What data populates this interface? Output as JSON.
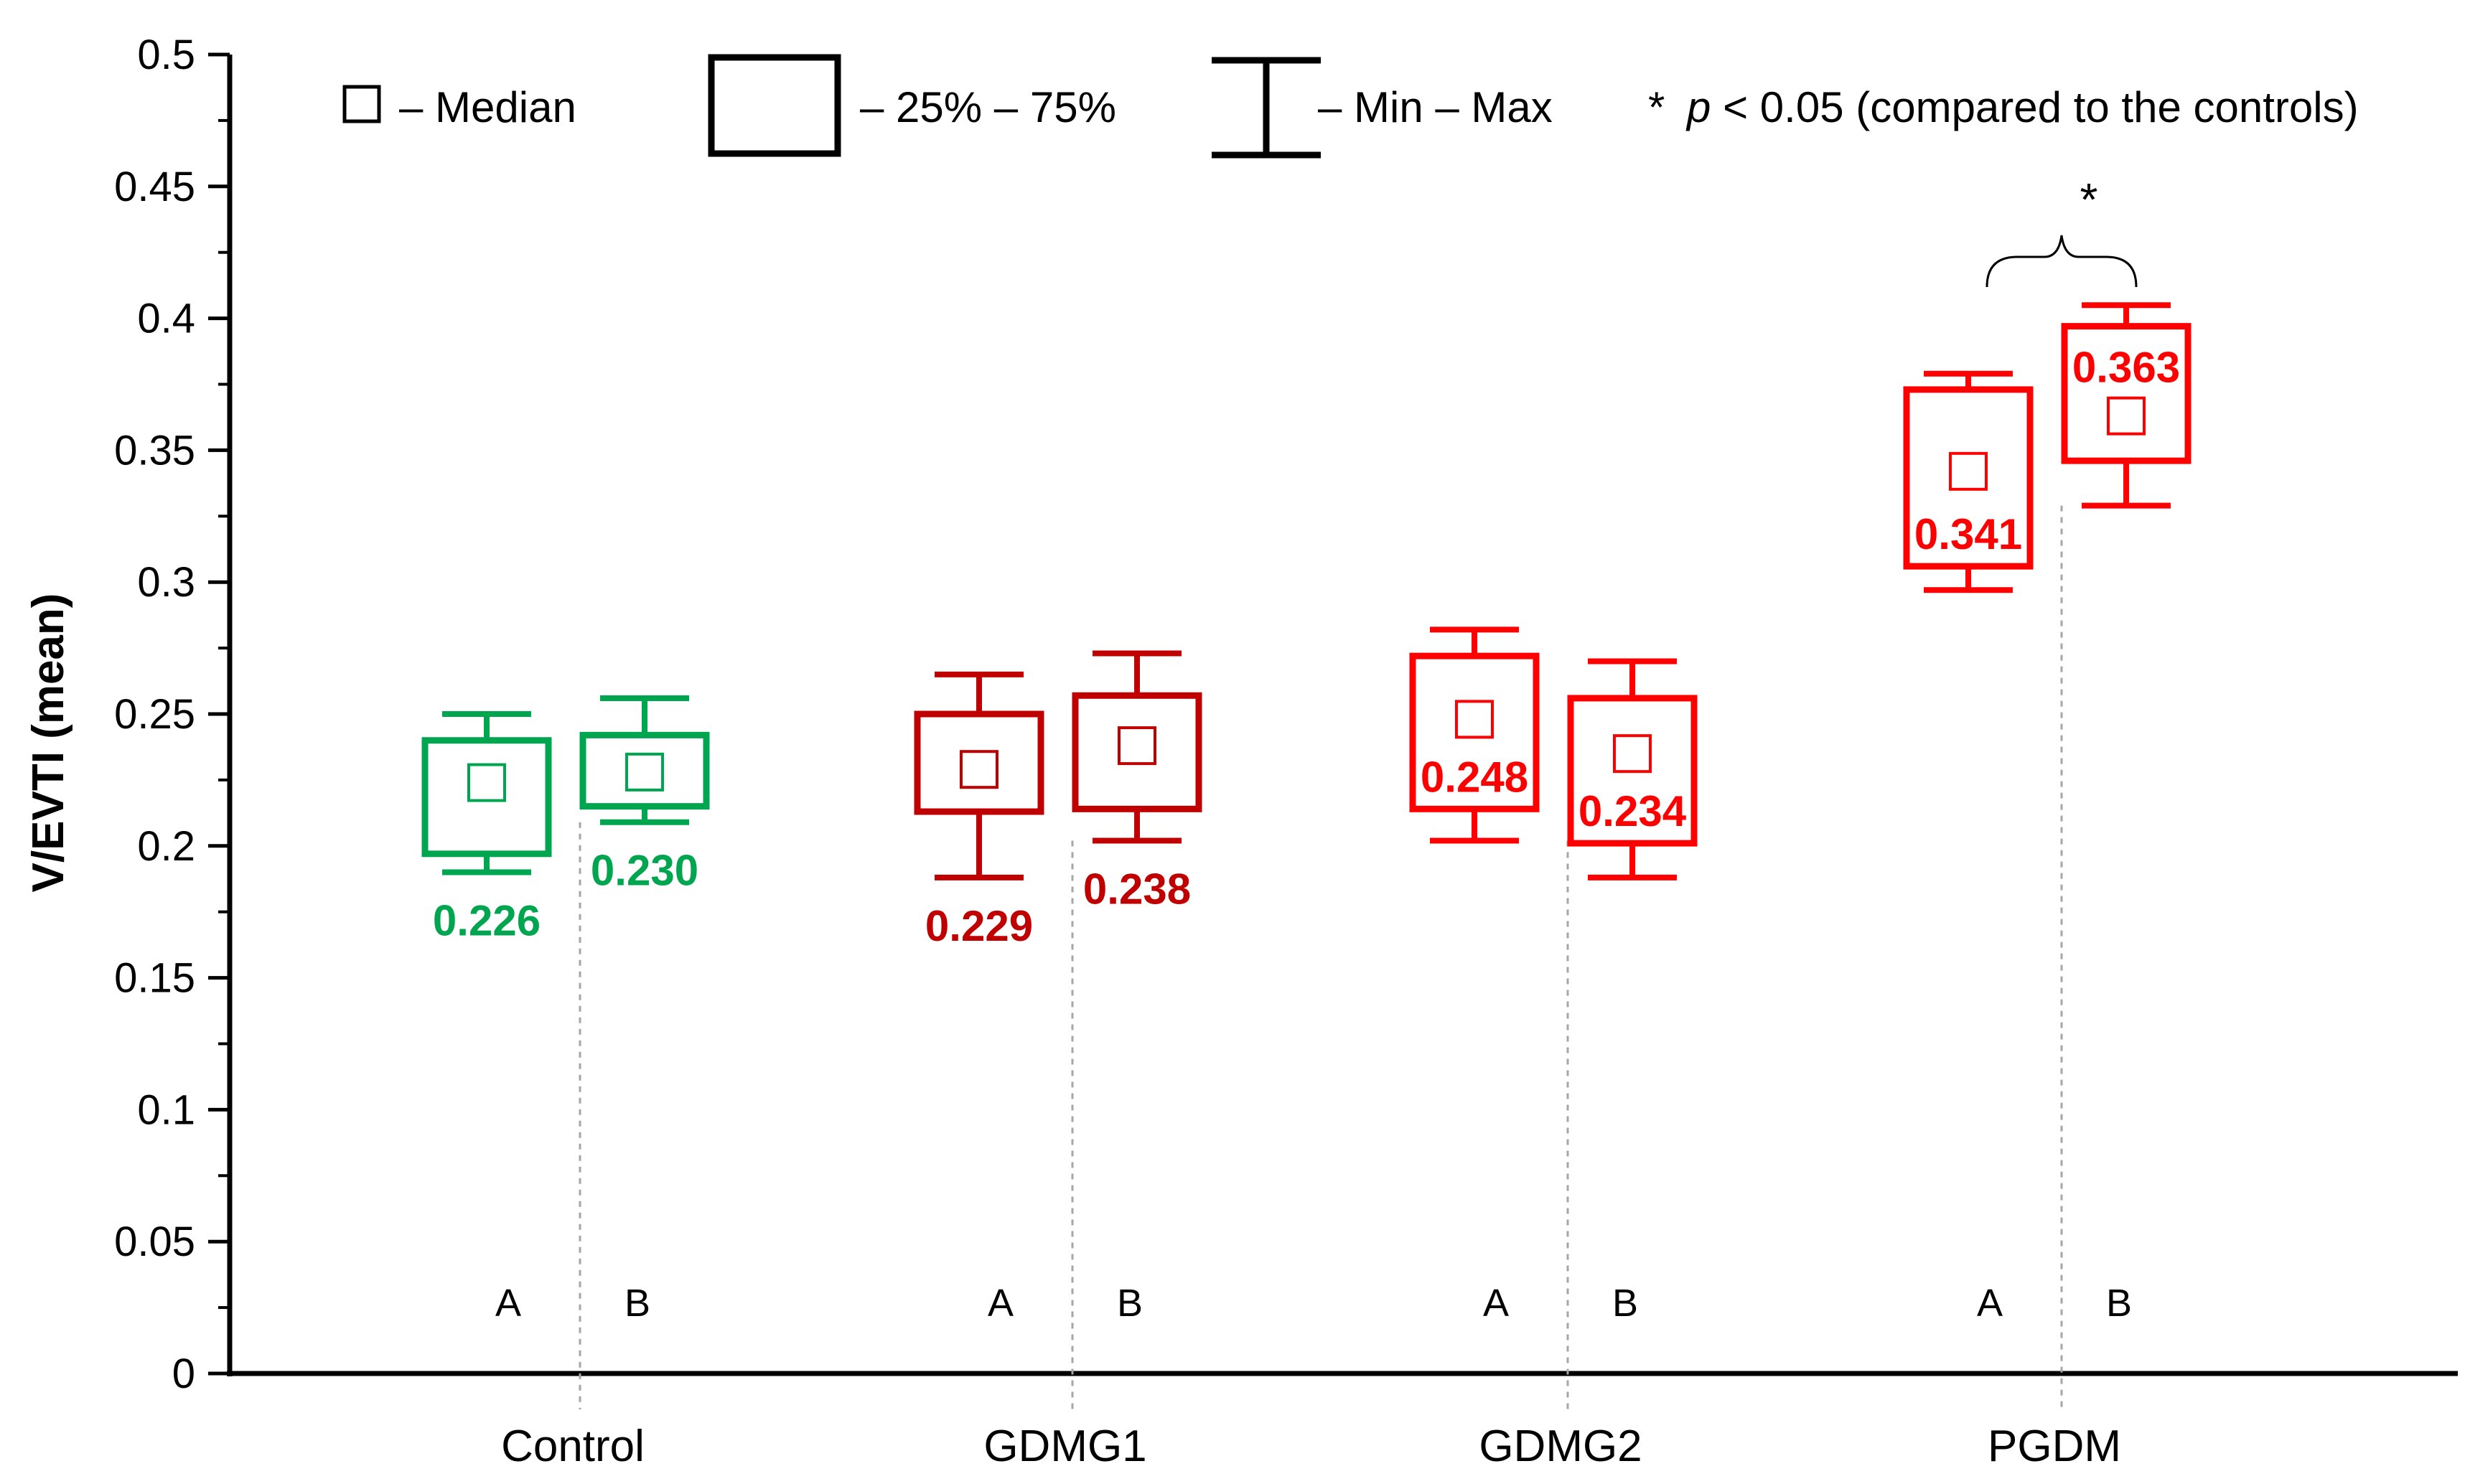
{
  "chart_data": {
    "type": "boxplot",
    "ylabel": "V/EVTI (mean)",
    "ylim": [
      0,
      0.5
    ],
    "y_ticks": [
      "0",
      "0.05",
      "0.1",
      "0.15",
      "0.2",
      "0.25",
      "0.3",
      "0.35",
      "0.4",
      "0.45",
      "0.5"
    ],
    "y_tick_values": [
      0,
      0.05,
      0.1,
      0.15,
      0.2,
      0.25,
      0.3,
      0.35,
      0.4,
      0.45,
      0.5
    ],
    "categories": [
      "Control",
      "GDMG1",
      "GDMG2",
      "PGDM"
    ],
    "subgroups": [
      "A",
      "B"
    ],
    "colors": {
      "control": "#00a550",
      "gdmg1": "#c00000",
      "gdmg2": "#ff0000",
      "pgdm": "#ff0000",
      "axis": "#000000",
      "divider": "#a6a6a6"
    },
    "series": [
      {
        "category": "Control",
        "subgroup": "A",
        "color": "#00a550",
        "min": 0.19,
        "q1": 0.197,
        "median": 0.224,
        "q3": 0.24,
        "max": 0.25,
        "label": "0.226",
        "label_pos": "below"
      },
      {
        "category": "Control",
        "subgroup": "B",
        "color": "#00a550",
        "min": 0.209,
        "q1": 0.215,
        "median": 0.228,
        "q3": 0.242,
        "max": 0.256,
        "label": "0.230",
        "label_pos": "below"
      },
      {
        "category": "GDMG1",
        "subgroup": "A",
        "color": "#c00000",
        "min": 0.188,
        "q1": 0.213,
        "median": 0.229,
        "q3": 0.25,
        "max": 0.265,
        "label": "0.229",
        "label_pos": "below"
      },
      {
        "category": "GDMG1",
        "subgroup": "B",
        "color": "#c00000",
        "min": 0.202,
        "q1": 0.214,
        "median": 0.238,
        "q3": 0.257,
        "max": 0.273,
        "label": "0.238",
        "label_pos": "below"
      },
      {
        "category": "GDMG2",
        "subgroup": "A",
        "color": "#ff0000",
        "min": 0.202,
        "q1": 0.214,
        "median": 0.248,
        "q3": 0.272,
        "max": 0.282,
        "label": "0.248",
        "label_pos": "inside-low"
      },
      {
        "category": "GDMG2",
        "subgroup": "B",
        "color": "#ff0000",
        "min": 0.188,
        "q1": 0.201,
        "median": 0.235,
        "q3": 0.256,
        "max": 0.27,
        "label": "0.234",
        "label_pos": "inside-low"
      },
      {
        "category": "PGDM",
        "subgroup": "A",
        "color": "#ff0000",
        "min": 0.297,
        "q1": 0.306,
        "median": 0.342,
        "q3": 0.373,
        "max": 0.379,
        "label": "0.341",
        "label_pos": "inside-low"
      },
      {
        "category": "PGDM",
        "subgroup": "B",
        "color": "#ff0000",
        "min": 0.329,
        "q1": 0.346,
        "median": 0.363,
        "q3": 0.397,
        "max": 0.405,
        "label": "0.363",
        "label_pos": "inside-high"
      }
    ],
    "legend": {
      "median": "–  Median",
      "box": "– 25% – 75%",
      "whisker": "– Min – Max",
      "significance": "* p < 0.05 (compared to the controls)",
      "significance_star": "*",
      "significance_p": "p",
      "significance_rest": " < 0.05 (compared to the controls)"
    },
    "annotations": [
      {
        "category": "PGDM",
        "text": "*",
        "type": "brace"
      }
    ]
  }
}
